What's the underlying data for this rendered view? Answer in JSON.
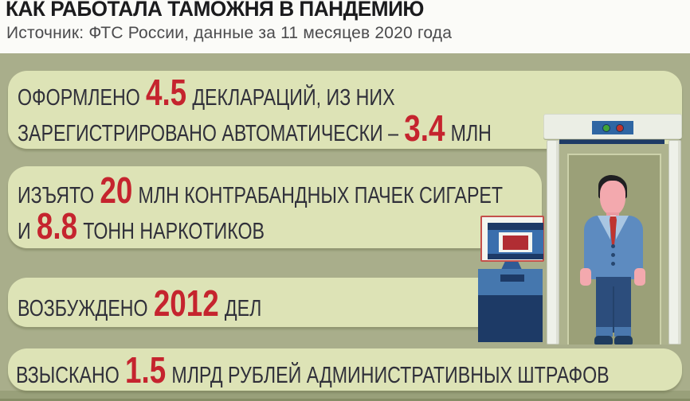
{
  "header": {
    "title": "КАК РАБОТАЛА ТАМОЖНЯ В ПАНДЕМИЮ",
    "source": "Источник: ФТС России, данные за 11 месяцев 2020 года"
  },
  "chart_data": {
    "type": "table",
    "title": "КАК РАБОТАЛА ТАМОЖНЯ В ПАНДЕМИЮ",
    "subtitle": "Источник: ФТС России, данные за 11 месяцев 2020 года",
    "facts": [
      {
        "metric": "Оформлено деклараций",
        "value": 4.5,
        "unit": "млн"
      },
      {
        "metric": "Зарегистрировано автоматически",
        "value": 3.4,
        "unit": "млн"
      },
      {
        "metric": "Изъято контрабандных пачек сигарет",
        "value": 20,
        "unit": "млн"
      },
      {
        "metric": "Изъято наркотиков",
        "value": 8.8,
        "unit": "тонн"
      },
      {
        "metric": "Возбуждено дел",
        "value": 2012,
        "unit": "дел"
      },
      {
        "metric": "Взыскано административных штрафов",
        "value": 1.5,
        "unit": "млрд рублей"
      }
    ]
  },
  "stats": [
    {
      "id": "declarations",
      "lines": [
        {
          "pre": "ОФОРМЛЕНО",
          "num": "4.5",
          "post": "ДЕКЛАРАЦИЙ, ИЗ НИХ"
        },
        {
          "pre": "ЗАРЕГИСТРИРОВАНО АВТОМАТИЧЕСКИ –",
          "num": "3.4",
          "post": "МЛН"
        }
      ]
    },
    {
      "id": "seizures",
      "lines": [
        {
          "pre": "ИЗЪЯТО",
          "num": "20",
          "post": "МЛН КОНТРАБАНДНЫХ ПАЧЕК СИГАРЕТ"
        },
        {
          "pre": "И",
          "num": "8.8",
          "post": "ТОНН НАРКОТИКОВ"
        }
      ]
    },
    {
      "id": "criminal-cases",
      "lines": [
        {
          "pre": "ВОЗБУЖДЕНО",
          "num": "2012",
          "post": "ДЕЛ"
        }
      ]
    },
    {
      "id": "fines",
      "lines": [
        {
          "pre": "ВЗЫСКАНО",
          "num": "1.5",
          "post": "МЛРД РУБЛЕЙ АДМИНИСТРАТИВНЫХ ШТРАФОВ"
        }
      ]
    }
  ],
  "colors": {
    "accent_red": "#c5242e",
    "card_green": "#dde3b6",
    "background_olive": "#a9ae8b",
    "header_white": "#fbfbf8",
    "gate_panel_blue": "#2f66a3",
    "navy": "#1d3a66",
    "suit_blue": "#5d8bc0",
    "status_light_green": "#3fa438",
    "status_light_red": "#c0332b"
  },
  "illustration": {
    "scene": "customs-metal-detector-checkpoint",
    "elements": [
      "metal-detector-gate",
      "status-lights",
      "inspection-monitor",
      "monitor-kiosk",
      "traveler-figure"
    ]
  }
}
